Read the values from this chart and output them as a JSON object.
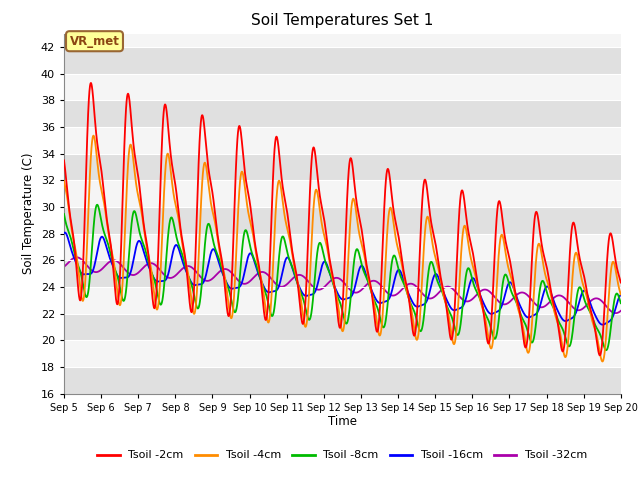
{
  "title": "Soil Temperatures Set 1",
  "xlabel": "Time",
  "ylabel": "Soil Temperature (C)",
  "ylim": [
    16,
    43
  ],
  "yticks": [
    16,
    18,
    20,
    22,
    24,
    26,
    28,
    30,
    32,
    34,
    36,
    38,
    40,
    42
  ],
  "annotation": "VR_met",
  "annotation_color": "#8B4513",
  "annotation_bg": "#FFFF99",
  "annotation_border": "#996633",
  "series_colors": {
    "Tsoil -2cm": "#FF0000",
    "Tsoil -4cm": "#FF8C00",
    "Tsoil -8cm": "#00BB00",
    "Tsoil -16cm": "#0000FF",
    "Tsoil -32cm": "#AA00AA"
  },
  "legend_labels": [
    "Tsoil -2cm",
    "Tsoil -4cm",
    "Tsoil -8cm",
    "Tsoil -16cm",
    "Tsoil -32cm"
  ],
  "bg_band_colors": [
    "#E0E0E0",
    "#F5F5F5"
  ],
  "bg_band_step": 2,
  "xtick_labels": [
    "Sep 5",
    "Sep 6",
    "Sep 7",
    "Sep 8",
    "Sep 9",
    "Sep 10",
    "Sep 11",
    "Sep 12",
    "Sep 13",
    "Sep 14",
    "Sep 15",
    "Sep 16",
    "Sep 17",
    "Sep 18",
    "Sep 19",
    "Sep 20"
  ],
  "xtick_positions": [
    0,
    1,
    2,
    3,
    4,
    5,
    6,
    7,
    8,
    9,
    10,
    11,
    12,
    13,
    14,
    15
  ],
  "xstart": 0,
  "xend": 15
}
